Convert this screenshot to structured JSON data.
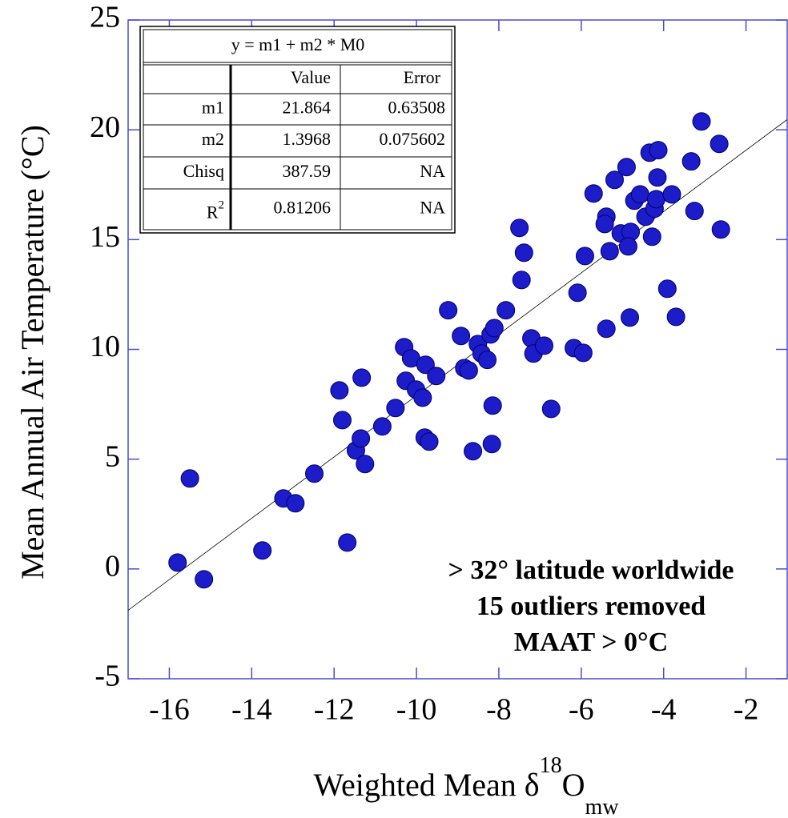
{
  "chart_data": {
    "type": "scatter",
    "xlabel": {
      "text": "Weighted Mean δ",
      "sup": "18",
      "base": "O",
      "sub": "mw"
    },
    "ylabel": "Mean Annual Air Temperature (°C)",
    "xlim": [
      -17,
      -1
    ],
    "ylim": [
      -5,
      25
    ],
    "xticks": [
      -16,
      -14,
      -12,
      -10,
      -8,
      -6,
      -4,
      -2
    ],
    "yticks": [
      -5,
      0,
      5,
      10,
      15,
      20,
      25
    ],
    "color": "#1c1cc8",
    "frame_color": "#4a4ad0",
    "x": [
      -15.8,
      -15.5,
      -15.16,
      -13.74,
      -13.23,
      -12.94,
      -12.48,
      -11.87,
      -11.8,
      -11.68,
      -11.47,
      -11.35,
      -11.33,
      -11.25,
      -10.83,
      -10.51,
      -10.3,
      -10.26,
      -10.13,
      -10.01,
      -9.85,
      -9.78,
      -9.8,
      -9.69,
      -9.52,
      -9.23,
      -8.92,
      -8.84,
      -8.73,
      -8.63,
      -8.51,
      -8.42,
      -8.28,
      -8.2,
      -8.11,
      -8.15,
      -8.17,
      -7.83,
      -7.5,
      -7.39,
      -7.45,
      -7.21,
      -7.16,
      -6.9,
      -6.73,
      -6.18,
      -5.95,
      -6.09,
      -5.91,
      -5.7,
      -5.39,
      -5.43,
      -5.31,
      -5.39,
      -5.19,
      -5.04,
      -4.9,
      -4.8,
      -4.86,
      -4.82,
      -4.71,
      -4.57,
      -4.44,
      -4.34,
      -4.28,
      -4.22,
      -4.18,
      -4.15,
      -4.13,
      -3.91,
      -3.8,
      -3.7,
      -3.33,
      -3.25,
      -3.08,
      -2.65,
      -2.61
    ],
    "values": [
      0.29,
      4.12,
      -0.47,
      0.84,
      3.21,
      2.99,
      4.34,
      8.13,
      6.78,
      1.2,
      5.4,
      5.94,
      8.71,
      4.78,
      6.49,
      7.33,
      10.1,
      8.57,
      9.59,
      8.17,
      7.8,
      9.3,
      5.98,
      5.8,
      8.79,
      11.78,
      10.61,
      9.15,
      9.04,
      5.36,
      10.24,
      9.81,
      9.52,
      10.68,
      10.97,
      7.44,
      5.69,
      11.78,
      15.53,
      14.4,
      13.16,
      10.5,
      9.81,
      10.17,
      7.29,
      10.06,
      9.84,
      12.58,
      14.25,
      17.1,
      16.04,
      15.71,
      14.47,
      10.94,
      17.72,
      15.28,
      18.3,
      15.35,
      14.69,
      11.45,
      16.77,
      17.06,
      16.04,
      18.96,
      15.13,
      16.41,
      16.84,
      17.83,
      19.07,
      12.76,
      17.06,
      11.48,
      18.56,
      16.3,
      20.38,
      19.36,
      15.46
    ],
    "fit_table": {
      "title": "y = m1 + m2 * M0",
      "columns": [
        "Value",
        "Error"
      ],
      "rows": [
        {
          "name": "m1",
          "value": 21.864,
          "error": 0.63508
        },
        {
          "name": "m2",
          "value": 1.3968,
          "error": 0.075602
        },
        {
          "name": "Chisq",
          "value": 387.59,
          "error": "NA"
        },
        {
          "name": "R",
          "sup": "2",
          "value": 0.81206,
          "error": "NA"
        }
      ]
    },
    "annotation": [
      "> 32° latitude worldwide",
      "15 outliers removed",
      "MAAT > 0°C"
    ]
  }
}
